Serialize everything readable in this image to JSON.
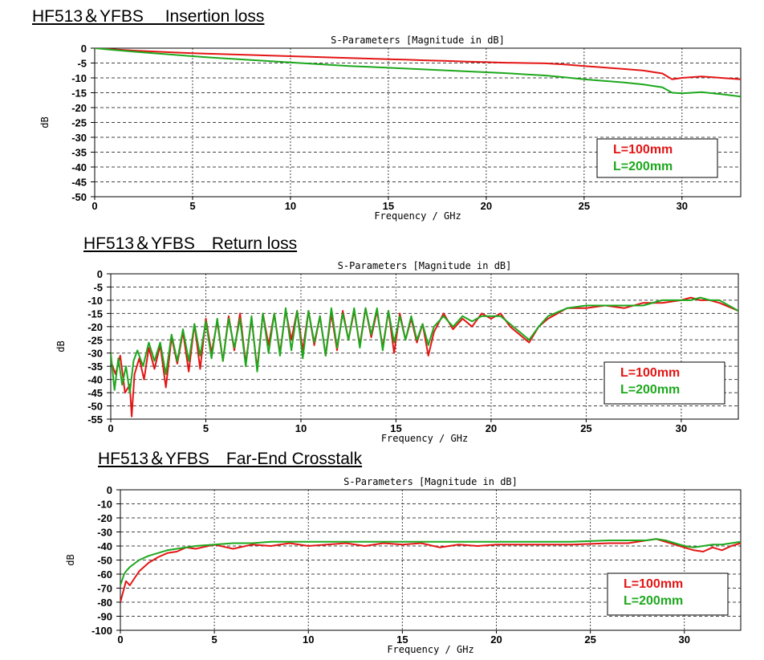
{
  "colors": {
    "series_100": "#e41515",
    "series_200": "#1da81d",
    "grid": "#444444",
    "frame": "#000000"
  },
  "chart_data": [
    {
      "type": "line",
      "heading": "HF513＆YFBS　 Insertion loss",
      "title": "S-Parameters [Magnitude in dB]",
      "xlabel": "Frequency / GHz",
      "ylabel": "dB",
      "xlim": [
        0,
        33
      ],
      "ylim": [
        -50,
        0
      ],
      "xticks": [
        0,
        5,
        10,
        15,
        20,
        25,
        30
      ],
      "yticks": [
        0,
        -5,
        -10,
        -15,
        -20,
        -25,
        -30,
        -35,
        -40,
        -45,
        -50
      ],
      "grid": true,
      "legend_position": "bottom-right",
      "series": [
        {
          "name": "L=100mm",
          "color": "#e41515",
          "x": [
            0,
            1,
            2,
            3,
            4,
            5,
            6,
            7,
            8,
            9,
            10,
            11,
            12,
            13,
            14,
            15,
            16,
            17,
            18,
            19,
            20,
            21,
            22,
            23,
            24,
            25,
            26,
            27,
            28,
            29,
            29.5,
            30,
            31,
            32,
            33
          ],
          "y": [
            0,
            -0.4,
            -0.8,
            -1.1,
            -1.4,
            -1.7,
            -1.9,
            -2.1,
            -2.3,
            -2.5,
            -2.7,
            -2.9,
            -3.1,
            -3.3,
            -3.5,
            -3.7,
            -3.9,
            -4.1,
            -4.3,
            -4.5,
            -4.7,
            -4.9,
            -5.0,
            -5.1,
            -5.5,
            -6.0,
            -6.5,
            -7.0,
            -7.5,
            -8.5,
            -10.5,
            -10.0,
            -9.5,
            -10.0,
            -10.5
          ]
        },
        {
          "name": "L=200mm",
          "color": "#1da81d",
          "x": [
            0,
            1,
            2,
            3,
            4,
            5,
            6,
            7,
            8,
            9,
            10,
            11,
            12,
            13,
            14,
            15,
            16,
            17,
            18,
            19,
            20,
            21,
            22,
            23,
            24,
            25,
            26,
            27,
            28,
            29,
            29.5,
            30,
            31,
            32,
            33
          ],
          "y": [
            0,
            -0.6,
            -1.2,
            -1.7,
            -2.2,
            -2.7,
            -3.2,
            -3.6,
            -4.0,
            -4.4,
            -4.8,
            -5.2,
            -5.6,
            -6.0,
            -6.3,
            -6.6,
            -6.9,
            -7.2,
            -7.5,
            -7.8,
            -8.1,
            -8.4,
            -8.8,
            -9.2,
            -9.8,
            -10.5,
            -11.0,
            -11.5,
            -12.2,
            -13.2,
            -15.0,
            -15.2,
            -14.8,
            -15.5,
            -16.3
          ]
        }
      ]
    },
    {
      "type": "line",
      "heading": "HF513＆YFBS　Return loss",
      "title": "S-Parameters [Magnitude in dB]",
      "xlabel": "Frequency / GHz",
      "ylabel": "dB",
      "xlim": [
        0,
        33
      ],
      "ylim": [
        -55,
        0
      ],
      "xticks": [
        0,
        5,
        10,
        15,
        20,
        25,
        30
      ],
      "yticks": [
        0,
        -5,
        -10,
        -15,
        -20,
        -25,
        -30,
        -35,
        -40,
        -45,
        -50,
        -55
      ],
      "grid": true,
      "legend_position": "bottom-right",
      "series": [
        {
          "name": "L=100mm",
          "color": "#e41515",
          "x": [
            0,
            0.25,
            0.5,
            0.75,
            1.0,
            1.1,
            1.25,
            1.5,
            1.75,
            2.0,
            2.3,
            2.6,
            2.9,
            3.2,
            3.5,
            3.8,
            4.1,
            4.4,
            4.7,
            5.0,
            5.3,
            5.6,
            5.9,
            6.2,
            6.5,
            6.8,
            7.1,
            7.4,
            7.7,
            8.0,
            8.3,
            8.6,
            8.9,
            9.2,
            9.5,
            9.8,
            10.1,
            10.4,
            10.7,
            11.0,
            11.3,
            11.6,
            11.9,
            12.2,
            12.5,
            12.8,
            13.1,
            13.4,
            13.7,
            14.0,
            14.3,
            14.6,
            14.9,
            15.2,
            15.5,
            15.8,
            16.1,
            16.4,
            16.7,
            17.0,
            17.5,
            18.0,
            18.5,
            19.0,
            19.5,
            20.0,
            20.5,
            21.0,
            21.5,
            22.0,
            22.5,
            23.0,
            24.0,
            25.0,
            26.0,
            27.0,
            28.0,
            29.0,
            30.0,
            30.5,
            31.0,
            31.5,
            32.0,
            33.0
          ],
          "y": [
            -33,
            -38,
            -31,
            -45,
            -42,
            -54,
            -38,
            -32,
            -40,
            -28,
            -36,
            -27,
            -43,
            -24,
            -34,
            -22,
            -37,
            -19,
            -36,
            -17,
            -30,
            -18,
            -33,
            -16,
            -29,
            -15,
            -34,
            -17,
            -36,
            -15,
            -27,
            -15,
            -30,
            -14,
            -25,
            -14,
            -29,
            -14,
            -27,
            -16,
            -31,
            -15,
            -29,
            -14,
            -25,
            -14,
            -27,
            -13,
            -24,
            -14,
            -28,
            -14,
            -30,
            -15,
            -25,
            -17,
            -26,
            -19,
            -31,
            -22,
            -15,
            -21,
            -17,
            -20,
            -15,
            -17,
            -15,
            -20,
            -23,
            -26,
            -20,
            -17,
            -13,
            -13,
            -12,
            -13,
            -11,
            -11,
            -10,
            -9,
            -10,
            -10,
            -11,
            -14
          ]
        },
        {
          "name": "L=200mm",
          "color": "#1da81d",
          "x": [
            0,
            0.2,
            0.4,
            0.6,
            0.8,
            1.0,
            1.2,
            1.4,
            1.7,
            2.0,
            2.3,
            2.6,
            2.9,
            3.2,
            3.5,
            3.8,
            4.1,
            4.4,
            4.7,
            5.0,
            5.3,
            5.6,
            5.9,
            6.2,
            6.5,
            6.8,
            7.1,
            7.4,
            7.7,
            8.0,
            8.3,
            8.6,
            8.9,
            9.2,
            9.5,
            9.8,
            10.1,
            10.4,
            10.7,
            11.0,
            11.3,
            11.6,
            11.9,
            12.2,
            12.5,
            12.8,
            13.1,
            13.4,
            13.7,
            14.0,
            14.3,
            14.6,
            14.9,
            15.2,
            15.5,
            15.8,
            16.1,
            16.4,
            16.7,
            17.0,
            17.5,
            18.0,
            18.5,
            19.0,
            19.5,
            20.0,
            20.5,
            21.0,
            21.5,
            22.0,
            22.5,
            23.0,
            24.0,
            25.0,
            26.0,
            27.0,
            28.0,
            29.0,
            30.0,
            30.5,
            31.0,
            31.5,
            32.0,
            33.0
          ],
          "y": [
            -30,
            -44,
            -32,
            -42,
            -35,
            -45,
            -33,
            -29,
            -35,
            -26,
            -33,
            -26,
            -38,
            -23,
            -33,
            -21,
            -33,
            -19,
            -31,
            -18,
            -32,
            -17,
            -33,
            -17,
            -28,
            -17,
            -35,
            -16,
            -37,
            -15,
            -30,
            -15,
            -31,
            -13,
            -29,
            -14,
            -32,
            -14,
            -26,
            -16,
            -31,
            -13,
            -28,
            -15,
            -25,
            -13,
            -28,
            -13,
            -23,
            -13,
            -29,
            -14,
            -26,
            -16,
            -25,
            -16,
            -25,
            -19,
            -27,
            -20,
            -16,
            -20,
            -16,
            -18,
            -16,
            -16,
            -16,
            -19,
            -22,
            -25,
            -20,
            -16,
            -13,
            -12,
            -12,
            -12,
            -12,
            -10,
            -10,
            -10,
            -9,
            -10,
            -10,
            -14
          ]
        }
      ]
    },
    {
      "type": "line",
      "heading": "HF513＆YFBS　Far-End Crosstalk",
      "title": "S-Parameters [Magnitude in dB]",
      "xlabel": "Frequency / GHz",
      "ylabel": "dB",
      "xlim": [
        0,
        33
      ],
      "ylim": [
        -100,
        0
      ],
      "xticks": [
        0,
        5,
        10,
        15,
        20,
        25,
        30
      ],
      "yticks": [
        0,
        -10,
        -20,
        -30,
        -40,
        -50,
        -60,
        -70,
        -80,
        -90,
        -100
      ],
      "grid": true,
      "legend_position": "bottom-right",
      "series": [
        {
          "name": "L=100mm",
          "color": "#e41515",
          "x": [
            0,
            0.1,
            0.2,
            0.3,
            0.5,
            0.8,
            1.0,
            1.5,
            2.0,
            2.5,
            3.0,
            3.5,
            4.0,
            5.0,
            6.0,
            7.0,
            8.0,
            9.0,
            10.0,
            11.0,
            12.0,
            13.0,
            14.0,
            15.0,
            16.0,
            17.0,
            18.0,
            19.0,
            20.0,
            22.0,
            24.0,
            26.0,
            27.0,
            28.0,
            28.5,
            29.0,
            29.5,
            30.0,
            30.5,
            31.0,
            31.5,
            32.0,
            32.5,
            33.0
          ],
          "y": [
            -80,
            -75,
            -70,
            -65,
            -68,
            -62,
            -58,
            -52,
            -48,
            -45,
            -44,
            -41,
            -42,
            -39,
            -42,
            -39,
            -40,
            -38,
            -40,
            -39,
            -38,
            -40,
            -38,
            -39,
            -38,
            -41,
            -39,
            -40,
            -39,
            -39,
            -39,
            -38,
            -38,
            -36,
            -35,
            -37,
            -39,
            -41,
            -43,
            -44,
            -41,
            -43,
            -40,
            -38
          ]
        },
        {
          "name": "L=200mm",
          "color": "#1da81d",
          "x": [
            0,
            0.1,
            0.2,
            0.3,
            0.5,
            0.8,
            1.0,
            1.5,
            2.0,
            2.5,
            3.0,
            3.5,
            4.0,
            5.0,
            6.0,
            7.0,
            8.0,
            9.0,
            10.0,
            11.0,
            12.0,
            13.0,
            14.0,
            15.0,
            16.0,
            17.0,
            18.0,
            19.0,
            20.0,
            22.0,
            24.0,
            26.0,
            27.0,
            28.0,
            28.5,
            29.0,
            29.5,
            30.0,
            30.5,
            31.0,
            31.5,
            32.0,
            32.5,
            33.0
          ],
          "y": [
            -68,
            -64,
            -60,
            -58,
            -55,
            -52,
            -50,
            -47,
            -45,
            -43,
            -42,
            -41,
            -40,
            -39,
            -38,
            -38,
            -37,
            -37,
            -37,
            -37,
            -37,
            -37,
            -37,
            -37,
            -37,
            -37,
            -37,
            -37,
            -37,
            -37,
            -37,
            -36,
            -36,
            -36,
            -35,
            -36,
            -38,
            -40,
            -41,
            -40,
            -39,
            -39,
            -38,
            -37
          ]
        }
      ]
    }
  ]
}
